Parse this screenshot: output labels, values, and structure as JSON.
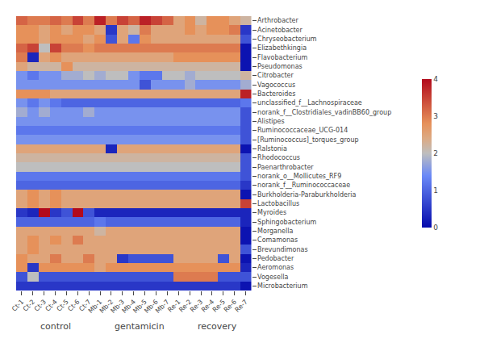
{
  "chart_data": {
    "type": "heatmap",
    "x": [
      "Ct-1",
      "Ct-2",
      "Ct-3",
      "Ct-4",
      "Ct-5",
      "Ct-6",
      "Ct-7",
      "Mb-1",
      "Mb-2",
      "Mb-3",
      "Mb-4",
      "Mb-5",
      "Mb-6",
      "Mb-7",
      "Re-1",
      "Re-2",
      "Re-3",
      "Re-4",
      "Re-5",
      "Re-6",
      "Re-7"
    ],
    "y": [
      "Arthrobacter",
      "Acinetobacter",
      "Chryseobacterium",
      "Elizabethkingia",
      "Flavobacterium",
      "Pseudomonas",
      "Citrobacter",
      "Vagococcus",
      "Bacteroides",
      "unclassified_f__Lachnospiraceae",
      "norank_f__Clostridiales_vadinBB60_group",
      "Alistipes",
      "Ruminococcaceae_UCG-014",
      "[Ruminococcus]_torques_group",
      "Ralstonia",
      "Rhodococcus",
      "Paenarthrobacter",
      "norank_o__Mollicutes_RF9",
      "norank_f__Ruminococcaceae",
      "Burkholderia-Paraburkholderia",
      "Lactobacillus",
      "Myroides",
      "Sphingobacterium",
      "Morganella",
      "Comamonas",
      "Brevundimonas",
      "Pedobacter",
      "Aeromonas",
      "Vogesella",
      "Microbacterium"
    ],
    "values": [
      [
        3.2,
        3.0,
        3.0,
        3.2,
        3.0,
        3.5,
        3.0,
        3.8,
        3.0,
        3.5,
        3.2,
        3.8,
        3.5,
        3.2,
        2.5,
        2.8,
        2.2,
        2.8,
        2.8,
        2.5,
        2.2
      ],
      [
        2.8,
        2.8,
        2.5,
        2.8,
        2.5,
        2.8,
        2.8,
        2.5,
        0.5,
        2.5,
        2.2,
        3.0,
        2.5,
        2.5,
        2.5,
        2.8,
        2.5,
        2.8,
        2.8,
        3.0,
        0.5
      ],
      [
        2.8,
        2.8,
        2.5,
        2.8,
        2.8,
        2.8,
        2.5,
        2.8,
        0.8,
        2.5,
        1.2,
        2.8,
        2.5,
        2.5,
        2.5,
        2.5,
        2.5,
        2.5,
        2.5,
        2.5,
        0.8
      ],
      [
        3.2,
        3.5,
        2.0,
        3.5,
        3.0,
        3.0,
        2.8,
        3.0,
        3.0,
        3.0,
        3.0,
        3.0,
        3.0,
        3.0,
        3.0,
        3.0,
        3.0,
        3.0,
        3.0,
        3.0,
        0.1
      ],
      [
        3.0,
        0.3,
        2.5,
        2.8,
        2.5,
        2.5,
        2.5,
        2.5,
        2.5,
        2.5,
        2.5,
        2.5,
        2.5,
        2.5,
        2.8,
        2.8,
        2.8,
        2.8,
        2.8,
        2.8,
        0.1
      ],
      [
        2.5,
        2.2,
        2.2,
        2.2,
        2.8,
        2.2,
        2.2,
        2.2,
        2.2,
        2.2,
        2.2,
        2.2,
        2.2,
        2.2,
        2.2,
        2.2,
        2.2,
        2.2,
        2.2,
        2.2,
        0.1
      ],
      [
        1.5,
        1.2,
        1.5,
        1.5,
        1.8,
        1.8,
        2.0,
        1.8,
        2.0,
        2.0,
        1.5,
        1.2,
        1.2,
        2.0,
        2.0,
        1.8,
        2.0,
        2.0,
        2.0,
        2.0,
        2.2
      ],
      [
        1.5,
        1.5,
        1.5,
        1.5,
        1.5,
        1.5,
        1.5,
        1.5,
        1.5,
        1.5,
        1.5,
        0.8,
        1.5,
        1.5,
        1.5,
        1.8,
        1.5,
        1.5,
        1.5,
        1.5,
        1.8
      ],
      [
        2.8,
        2.8,
        2.8,
        2.5,
        2.5,
        2.5,
        2.5,
        2.5,
        2.5,
        2.5,
        2.5,
        2.5,
        2.5,
        2.5,
        2.5,
        2.5,
        2.5,
        2.5,
        2.5,
        2.5,
        3.8
      ],
      [
        1.5,
        1.2,
        1.5,
        1.2,
        1.0,
        1.0,
        1.0,
        1.0,
        1.0,
        1.0,
        1.0,
        1.0,
        1.0,
        1.0,
        1.0,
        1.0,
        1.0,
        1.0,
        1.0,
        1.0,
        1.2
      ],
      [
        1.8,
        1.5,
        1.8,
        1.5,
        1.5,
        1.5,
        1.8,
        1.5,
        1.5,
        1.5,
        1.5,
        1.5,
        1.5,
        1.5,
        1.5,
        1.5,
        1.5,
        1.5,
        1.5,
        1.5,
        0.8
      ],
      [
        1.5,
        1.5,
        1.5,
        1.5,
        1.5,
        1.5,
        1.5,
        1.5,
        1.5,
        1.5,
        1.5,
        1.5,
        1.5,
        1.5,
        1.5,
        1.5,
        1.5,
        1.5,
        1.5,
        1.5,
        0.8
      ],
      [
        1.2,
        1.2,
        1.2,
        1.2,
        1.2,
        1.2,
        1.2,
        1.2,
        1.2,
        1.2,
        1.2,
        1.2,
        1.2,
        1.2,
        1.2,
        1.2,
        1.2,
        1.2,
        1.2,
        1.2,
        0.8
      ],
      [
        1.5,
        1.5,
        1.5,
        1.5,
        1.5,
        1.5,
        1.5,
        1.5,
        1.5,
        1.5,
        1.5,
        1.5,
        1.5,
        1.5,
        1.5,
        1.5,
        1.5,
        1.5,
        1.5,
        1.5,
        0.8
      ],
      [
        2.5,
        2.5,
        2.5,
        2.5,
        2.5,
        2.5,
        2.5,
        2.5,
        0.3,
        2.5,
        2.5,
        2.5,
        2.5,
        2.5,
        2.5,
        2.5,
        2.5,
        2.5,
        2.5,
        2.5,
        0.1
      ],
      [
        2.2,
        2.2,
        2.2,
        2.2,
        2.2,
        2.2,
        2.2,
        2.2,
        2.2,
        2.2,
        2.2,
        2.2,
        2.2,
        2.2,
        2.2,
        2.2,
        2.2,
        2.2,
        2.2,
        2.2,
        0.8
      ],
      [
        2.0,
        2.0,
        2.0,
        2.0,
        2.0,
        2.0,
        2.0,
        2.0,
        2.0,
        2.0,
        2.0,
        2.0,
        2.0,
        2.0,
        2.0,
        2.0,
        2.0,
        2.0,
        2.0,
        2.0,
        0.8
      ],
      [
        1.2,
        1.2,
        1.2,
        1.2,
        1.2,
        1.2,
        1.2,
        1.2,
        1.2,
        1.2,
        1.2,
        1.2,
        1.2,
        1.2,
        1.2,
        1.2,
        1.2,
        1.2,
        1.2,
        1.2,
        0.8
      ],
      [
        1.0,
        1.0,
        1.0,
        1.0,
        1.0,
        1.0,
        1.0,
        1.0,
        1.0,
        1.0,
        1.0,
        1.0,
        1.0,
        1.0,
        1.0,
        1.0,
        1.0,
        1.0,
        1.0,
        1.0,
        0.5
      ],
      [
        2.5,
        2.8,
        2.5,
        2.8,
        2.5,
        2.5,
        2.5,
        2.5,
        2.5,
        2.5,
        2.5,
        2.5,
        2.5,
        2.5,
        2.5,
        2.5,
        2.5,
        2.5,
        2.5,
        2.5,
        0.1
      ],
      [
        2.5,
        2.8,
        2.5,
        2.8,
        2.5,
        2.5,
        2.5,
        2.5,
        2.5,
        2.5,
        2.5,
        2.5,
        2.5,
        2.5,
        2.5,
        2.5,
        2.5,
        2.5,
        2.5,
        2.5,
        3.5
      ],
      [
        0.5,
        0.3,
        4.0,
        0.5,
        0.8,
        4.0,
        0.8,
        0.3,
        0.3,
        0.3,
        0.3,
        0.3,
        0.3,
        0.3,
        0.3,
        0.3,
        0.3,
        0.3,
        0.3,
        0.3,
        0.3
      ],
      [
        1.0,
        1.0,
        1.0,
        1.0,
        1.0,
        1.0,
        1.0,
        1.2,
        1.0,
        1.0,
        1.0,
        1.0,
        1.0,
        1.0,
        1.0,
        1.0,
        1.0,
        1.0,
        1.0,
        1.0,
        0.3
      ],
      [
        2.5,
        2.5,
        2.5,
        2.5,
        2.5,
        2.5,
        2.5,
        2.2,
        2.5,
        2.5,
        2.5,
        2.5,
        2.5,
        2.5,
        2.5,
        2.5,
        2.5,
        2.5,
        2.5,
        2.5,
        0.1
      ],
      [
        2.5,
        2.8,
        2.5,
        2.8,
        2.5,
        3.0,
        2.5,
        2.5,
        2.5,
        2.5,
        2.5,
        2.5,
        2.5,
        2.5,
        2.5,
        2.5,
        2.5,
        2.5,
        2.5,
        2.5,
        0.1
      ],
      [
        2.5,
        2.8,
        2.5,
        2.5,
        2.5,
        2.5,
        2.5,
        2.5,
        2.5,
        2.5,
        2.5,
        2.5,
        2.5,
        2.5,
        2.5,
        2.5,
        2.5,
        2.5,
        2.5,
        2.5,
        0.8
      ],
      [
        2.8,
        2.5,
        2.5,
        3.0,
        2.5,
        2.5,
        3.0,
        2.5,
        2.5,
        0.5,
        0.8,
        0.8,
        0.8,
        0.8,
        2.5,
        2.5,
        2.5,
        2.5,
        0.8,
        2.5,
        0.1
      ],
      [
        2.8,
        0.5,
        2.8,
        2.8,
        2.8,
        2.8,
        2.8,
        2.5,
        2.8,
        2.8,
        2.8,
        2.8,
        2.8,
        2.8,
        2.8,
        2.8,
        2.8,
        2.8,
        2.8,
        2.8,
        0.3
      ],
      [
        0.8,
        2.0,
        0.8,
        0.8,
        0.8,
        0.8,
        0.8,
        0.8,
        0.8,
        0.8,
        0.8,
        0.8,
        0.8,
        0.8,
        3.0,
        3.0,
        3.0,
        3.0,
        0.8,
        0.8,
        0.8
      ],
      [
        0.5,
        0.5,
        0.5,
        0.5,
        0.5,
        0.5,
        0.5,
        0.5,
        0.5,
        0.5,
        0.5,
        0.5,
        0.5,
        0.5,
        0.5,
        0.5,
        0.5,
        0.5,
        0.5,
        0.5,
        0.1
      ]
    ],
    "colorbar_range": [
      0,
      4
    ],
    "colorbar_ticks": [
      0,
      1,
      2,
      3,
      4
    ],
    "annotations": [
      {
        "text": "control",
        "x": 3.0
      },
      {
        "text": "gentamicin",
        "x": 10.5
      },
      {
        "text": "recovery",
        "x": 17.5
      }
    ],
    "grid": false
  }
}
